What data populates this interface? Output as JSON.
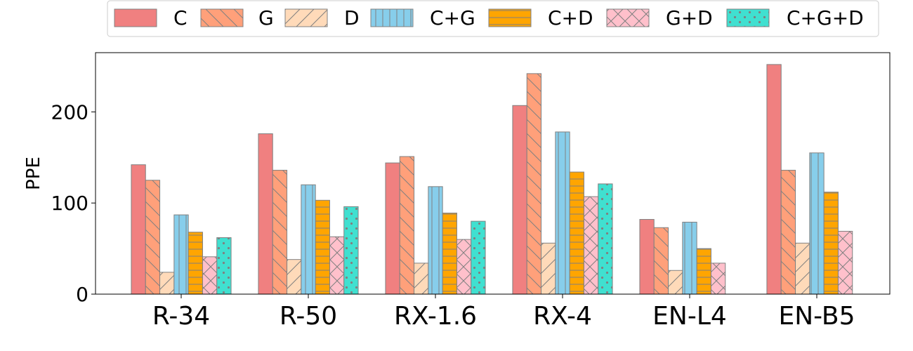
{
  "chart_data": {
    "type": "bar",
    "title": "",
    "xlabel": "",
    "ylabel": "PPE",
    "ylim": [
      0,
      265
    ],
    "yticks": [
      0,
      100,
      200
    ],
    "grid": false,
    "legend_position": "top-center",
    "categories": [
      "R-34",
      "R-50",
      "RX-1.6",
      "RX-4",
      "EN-L4",
      "EN-B5"
    ],
    "series": [
      {
        "name": "C",
        "color": "#F08080",
        "hatch": "none",
        "values": [
          142,
          176,
          144,
          207,
          82,
          252
        ]
      },
      {
        "name": "G",
        "color": "#FFA07A",
        "hatch": "backslash",
        "values": [
          125,
          136,
          151,
          242,
          73,
          136
        ]
      },
      {
        "name": "D",
        "color": "#FFDAB9",
        "hatch": "slash",
        "values": [
          24,
          38,
          34,
          56,
          26,
          56
        ]
      },
      {
        "name": "C+G",
        "color": "#87CEEB",
        "hatch": "vertical",
        "values": [
          87,
          120,
          118,
          178,
          79,
          155
        ]
      },
      {
        "name": "C+D",
        "color": "#FFA500",
        "hatch": "horizontal",
        "values": [
          68,
          103,
          89,
          134,
          50,
          112
        ]
      },
      {
        "name": "G+D",
        "color": "#FFC0CB",
        "hatch": "cross",
        "values": [
          41,
          63,
          60,
          107,
          34,
          69
        ]
      },
      {
        "name": "C+G+D",
        "color": "#40E0D0",
        "hatch": "dots",
        "values": [
          62,
          96,
          80,
          121,
          null,
          null
        ]
      }
    ]
  }
}
